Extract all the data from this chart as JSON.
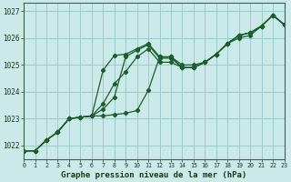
{
  "title": "Graphe pression niveau de la mer (hPa)",
  "bg_color": "#cce9e9",
  "grid_color": "#99cccc",
  "line_color": "#1a5e2a",
  "xlim": [
    0,
    23
  ],
  "ylim": [
    1021.5,
    1027.3
  ],
  "xticks": [
    0,
    1,
    2,
    3,
    4,
    5,
    6,
    7,
    8,
    9,
    10,
    11,
    12,
    13,
    14,
    15,
    16,
    17,
    18,
    19,
    20,
    21,
    22,
    23
  ],
  "yticks": [
    1022,
    1023,
    1024,
    1025,
    1026,
    1027
  ],
  "series": [
    [
      1021.8,
      1021.8,
      1022.2,
      1022.5,
      1023.0,
      1023.05,
      1023.1,
      1023.1,
      1023.15,
      1023.2,
      1023.3,
      1024.05,
      1025.3,
      1025.3,
      1025.0,
      1025.0,
      1025.1,
      1025.4,
      1025.8,
      1026.0,
      1026.1,
      1026.45,
      1026.85,
      1026.5
    ],
    [
      1021.8,
      1021.8,
      1022.2,
      1022.5,
      1023.0,
      1023.05,
      1023.1,
      1023.35,
      1023.8,
      1025.3,
      1025.55,
      1025.75,
      1025.25,
      1025.25,
      1024.9,
      1024.9,
      1025.1,
      1025.4,
      1025.8,
      1026.1,
      1026.2,
      1026.45,
      1026.85,
      1026.5
    ],
    [
      1021.8,
      1021.8,
      1022.2,
      1022.5,
      1023.0,
      1023.05,
      1023.1,
      1023.55,
      1024.3,
      1024.75,
      1025.3,
      1025.6,
      1025.1,
      1025.1,
      1024.9,
      1024.9,
      1025.1,
      1025.4,
      1025.8,
      1026.1,
      1026.2,
      1026.45,
      1026.85,
      1026.5
    ],
    [
      1021.8,
      1021.8,
      1022.2,
      1022.5,
      1023.0,
      1023.05,
      1023.1,
      1024.8,
      1025.35,
      1025.4,
      1025.6,
      1025.8,
      1025.3,
      1025.3,
      1024.9,
      1024.9,
      1025.1,
      1025.4,
      1025.8,
      1026.1,
      1026.2,
      1026.45,
      1026.85,
      1026.5
    ]
  ]
}
